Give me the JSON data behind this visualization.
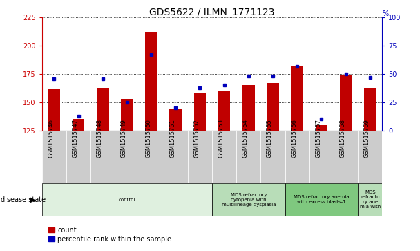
{
  "title": "GDS5622 / ILMN_1771123",
  "samples": [
    "GSM1515746",
    "GSM1515747",
    "GSM1515748",
    "GSM1515749",
    "GSM1515750",
    "GSM1515751",
    "GSM1515752",
    "GSM1515753",
    "GSM1515754",
    "GSM1515755",
    "GSM1515756",
    "GSM1515757",
    "GSM1515758",
    "GSM1515759"
  ],
  "counts": [
    162,
    135,
    163,
    153,
    212,
    144,
    158,
    160,
    165,
    167,
    182,
    130,
    174,
    163
  ],
  "percentile_ranks": [
    46,
    13,
    46,
    25,
    67,
    20,
    38,
    40,
    48,
    48,
    57,
    10,
    50,
    47
  ],
  "ylim_left": [
    125,
    225
  ],
  "ylim_right": [
    0,
    100
  ],
  "yticks_left": [
    125,
    150,
    175,
    200,
    225
  ],
  "yticks_right": [
    0,
    25,
    50,
    75,
    100
  ],
  "bar_color": "#C00000",
  "dot_color": "#0000BB",
  "background_color": "#ffffff",
  "grid_color": "#000000",
  "disease_groups": [
    {
      "label": "control",
      "start": 0,
      "end": 7,
      "color": "#dff0df"
    },
    {
      "label": "MDS refractory\ncytopenia with\nmultilineage dysplasia",
      "start": 7,
      "end": 10,
      "color": "#b8ddb8"
    },
    {
      "label": "MDS refractory anemia\nwith excess blasts-1",
      "start": 10,
      "end": 13,
      "color": "#7fc87f"
    },
    {
      "label": "MDS\nrefracto\nry ane\nmia with",
      "start": 13,
      "end": 14,
      "color": "#b8ddb8"
    }
  ],
  "left_axis_color": "#CC0000",
  "right_axis_color": "#0000BB",
  "tick_label_bg": "#cccccc",
  "disease_state_label": "disease state"
}
